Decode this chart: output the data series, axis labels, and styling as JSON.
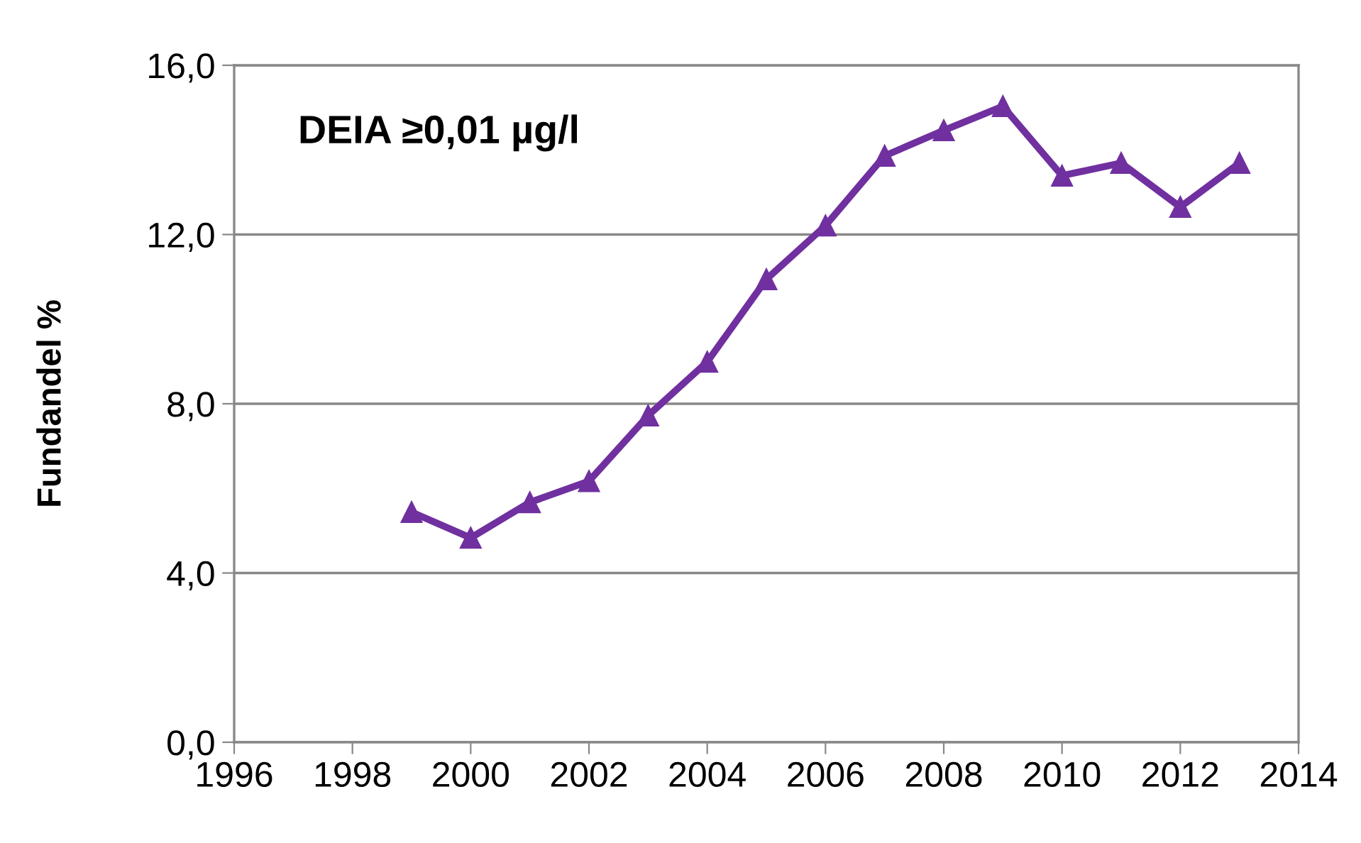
{
  "chart_data": {
    "type": "line",
    "title": "DEIA ≥0,01 µg/l",
    "ylabel": "Fundandel %",
    "x": [
      1999,
      2000,
      2001,
      2002,
      2003,
      2004,
      2005,
      2006,
      2007,
      2008,
      2009,
      2010,
      2011,
      2012,
      2013
    ],
    "series": [
      {
        "color": "#7030a0",
        "values": [
          5.44,
          4.83,
          5.67,
          6.17,
          7.72,
          8.99,
          10.94,
          12.21,
          13.86,
          14.46,
          15.03,
          13.39,
          13.69,
          12.65,
          13.69
        ]
      }
    ],
    "xlim": [
      1996,
      2014
    ],
    "xticks": [
      1996,
      1998,
      2000,
      2002,
      2004,
      2006,
      2008,
      2010,
      2012,
      2014
    ],
    "ylim": [
      0,
      16
    ],
    "yticks": [
      {
        "value": 0,
        "label": "0,0"
      },
      {
        "value": 4,
        "label": "4,0"
      },
      {
        "value": 8,
        "label": "8,0"
      },
      {
        "value": 12,
        "label": "12,0"
      },
      {
        "value": 16,
        "label": "16,0"
      }
    ],
    "grid": "y",
    "legend": false,
    "marker": "triangle",
    "line_style": "solid"
  }
}
